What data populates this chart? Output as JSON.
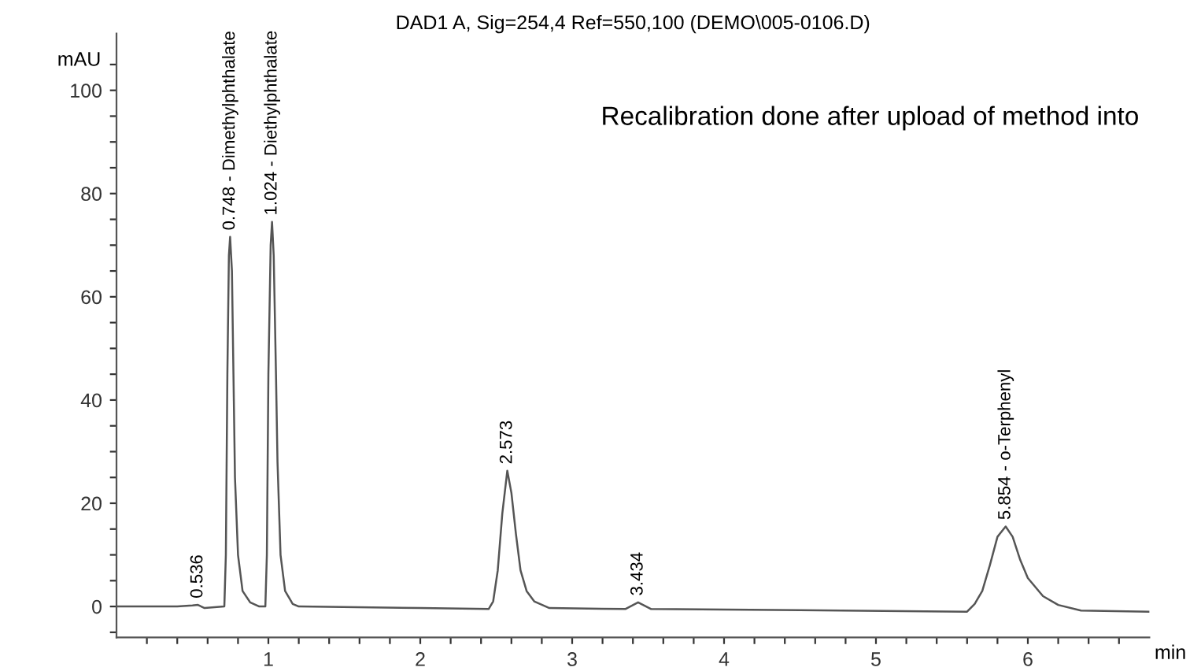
{
  "chart_data": {
    "type": "line",
    "title": "DAD1 A, Sig=254,4 Ref=550,100 (DEMO\\005-0106.D)",
    "xlabel": "min",
    "ylabel": "mAU",
    "series": [
      {
        "color": "#555555",
        "x": [
          0,
          0.4,
          0.5,
          0.536,
          0.58,
          0.71,
          0.72,
          0.73,
          0.74,
          0.748,
          0.76,
          0.77,
          0.78,
          0.8,
          0.83,
          0.88,
          0.94,
          0.98,
          0.99,
          1.0,
          1.015,
          1.024,
          1.035,
          1.05,
          1.06,
          1.08,
          1.11,
          1.16,
          1.2,
          2.0,
          2.45,
          2.48,
          2.51,
          2.54,
          2.573,
          2.6,
          2.63,
          2.66,
          2.7,
          2.75,
          2.85,
          3.35,
          3.434,
          3.52,
          4.5,
          5.6,
          5.65,
          5.7,
          5.75,
          5.8,
          5.854,
          5.9,
          5.95,
          6.0,
          6.1,
          6.2,
          6.35,
          6.8
        ],
        "values": [
          0,
          0,
          0.2,
          0.3,
          -0.3,
          0,
          10,
          45,
          68,
          71.6,
          65,
          45,
          25,
          10,
          3,
          0.8,
          0,
          0,
          10,
          45,
          70,
          74.5,
          68,
          45,
          28,
          10,
          3,
          0.5,
          0,
          -0.3,
          -0.5,
          1,
          7,
          18,
          26.3,
          22,
          14,
          7,
          3,
          1,
          -0.3,
          -0.5,
          0.8,
          -0.5,
          -0.7,
          -1,
          0.5,
          3,
          8,
          13.5,
          15.5,
          13.5,
          9,
          5.5,
          2,
          0.3,
          -0.8,
          -1
        ]
      }
    ],
    "xlim": [
      0,
      6.8
    ],
    "ylim": [
      -6,
      111
    ],
    "xticks": [
      {
        "value": 0.2,
        "label": null
      },
      {
        "value": 0.4,
        "label": null
      },
      {
        "value": 0.6,
        "label": null
      },
      {
        "value": 0.8,
        "label": null
      },
      1,
      {
        "value": 1.2,
        "label": null
      },
      {
        "value": 1.4,
        "label": null
      },
      {
        "value": 1.6,
        "label": null
      },
      {
        "value": 1.8,
        "label": null
      },
      2,
      {
        "value": 2.2,
        "label": null
      },
      {
        "value": 2.4,
        "label": null
      },
      {
        "value": 2.6,
        "label": null
      },
      {
        "value": 2.8,
        "label": null
      },
      3,
      {
        "value": 3.2,
        "label": null
      },
      {
        "value": 3.4,
        "label": null
      },
      {
        "value": 3.6,
        "label": null
      },
      {
        "value": 3.8,
        "label": null
      },
      4,
      {
        "value": 4.2,
        "label": null
      },
      {
        "value": 4.4,
        "label": null
      },
      {
        "value": 4.6,
        "label": null
      },
      {
        "value": 4.8,
        "label": null
      },
      5,
      {
        "value": 5.2,
        "label": null
      },
      {
        "value": 5.4,
        "label": null
      },
      {
        "value": 5.6,
        "label": null
      },
      {
        "value": 5.8,
        "label": null
      },
      6,
      {
        "value": 6.2,
        "label": null
      },
      {
        "value": 6.4,
        "label": null
      },
      {
        "value": 6.6,
        "label": null
      }
    ],
    "yticks": [
      {
        "value": -5,
        "label": null
      },
      0,
      {
        "value": 5,
        "label": null
      },
      {
        "value": 10,
        "label": null
      },
      {
        "value": 15,
        "label": null
      },
      20,
      {
        "value": 25,
        "label": null
      },
      {
        "value": 30,
        "label": null
      },
      {
        "value": 35,
        "label": null
      },
      40,
      {
        "value": 45,
        "label": null
      },
      {
        "value": 50,
        "label": null
      },
      {
        "value": 55,
        "label": null
      },
      60,
      {
        "value": 65,
        "label": null
      },
      {
        "value": 70,
        "label": null
      },
      {
        "value": 75,
        "label": null
      },
      80,
      {
        "value": 85,
        "label": null
      },
      {
        "value": 90,
        "label": null
      },
      {
        "value": 95,
        "label": null
      },
      100,
      {
        "value": 105,
        "label": null
      }
    ],
    "grid": false,
    "legend": false,
    "marker": "none",
    "line_style": "solid",
    "annotations": [
      {
        "text": "0.536",
        "x": 0.536,
        "y": 0.3
      },
      {
        "text": "0.748 - Dimethylphthalate",
        "x": 0.748,
        "y": 71.6
      },
      {
        "text": "1.024 - Diethylphthalate",
        "x": 1.024,
        "y": 74.5
      },
      {
        "text": "2.573",
        "x": 2.573,
        "y": 26.3
      },
      {
        "text": "3.434",
        "x": 3.434,
        "y": 0.8
      },
      {
        "text": "5.854 - o-Terphenyl",
        "x": 5.854,
        "y": 15.5
      },
      "Recalibration done after upload of method into"
    ]
  }
}
